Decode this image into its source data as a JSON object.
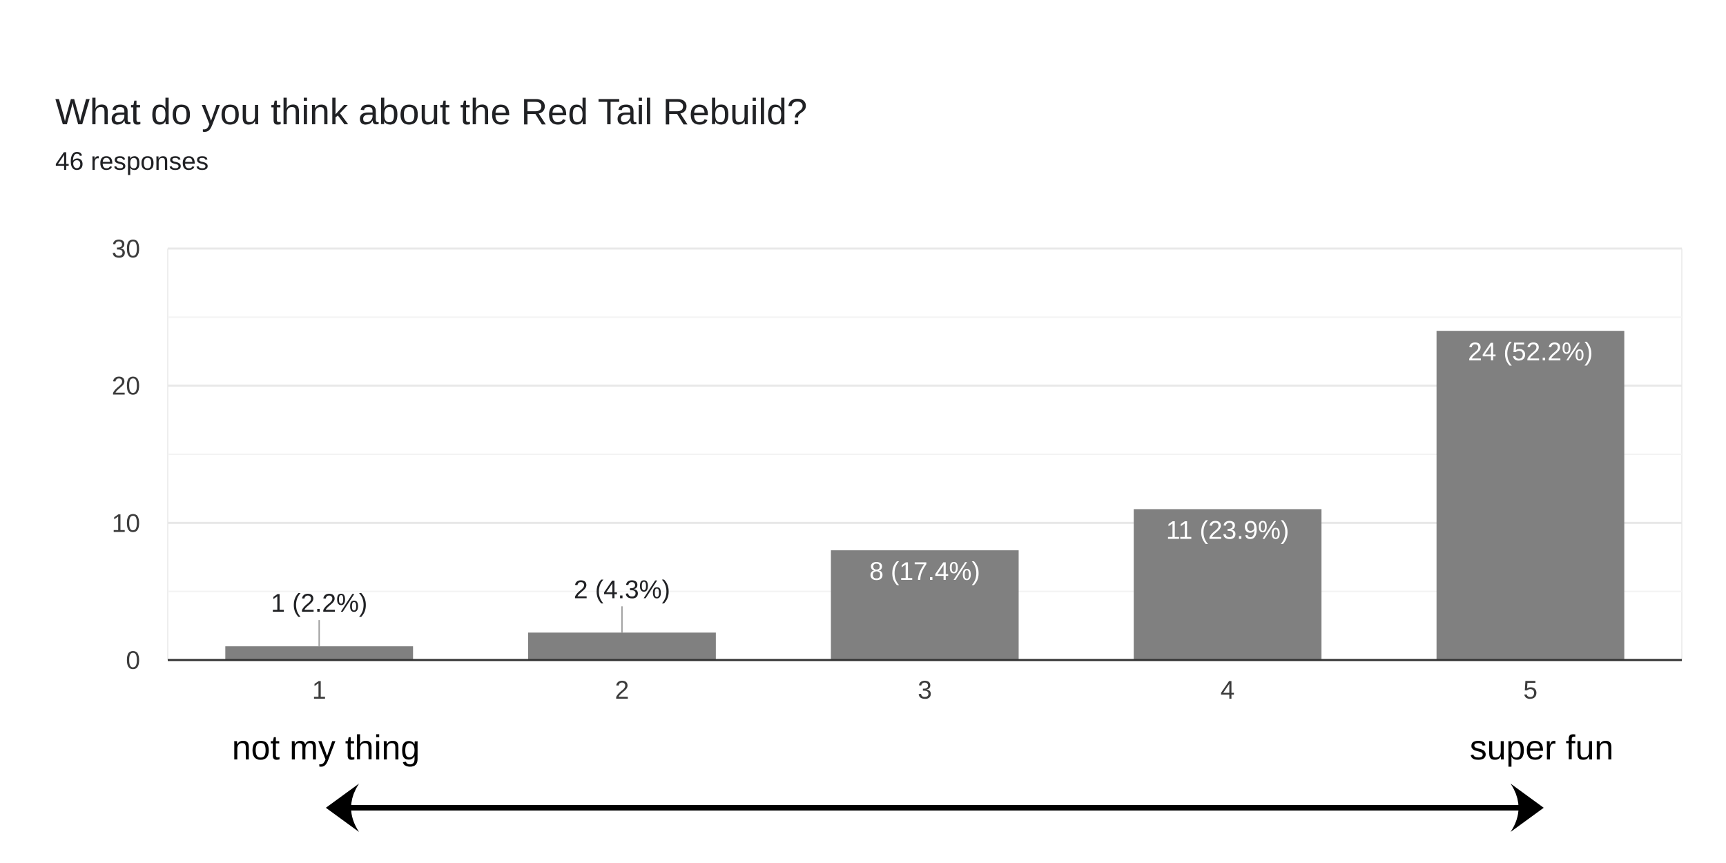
{
  "chart_data": {
    "type": "bar",
    "title": "What do you think about the Red Tail Rebuild?",
    "subtitle": "46 responses",
    "categories": [
      "1",
      "2",
      "3",
      "4",
      "5"
    ],
    "values": [
      1,
      2,
      8,
      11,
      24
    ],
    "data_labels": [
      "1 (2.2%)",
      "2 (4.3%)",
      "8 (17.4%)",
      "11 (23.9%)",
      "24 (52.2%)"
    ],
    "y_ticks": [
      0,
      10,
      20,
      30
    ],
    "ylim": [
      0,
      30
    ],
    "xlabel": "",
    "ylabel": "",
    "grid": true,
    "bar_color": "#808080",
    "scale_labels": {
      "low": "not my thing",
      "high": "super fun"
    }
  }
}
